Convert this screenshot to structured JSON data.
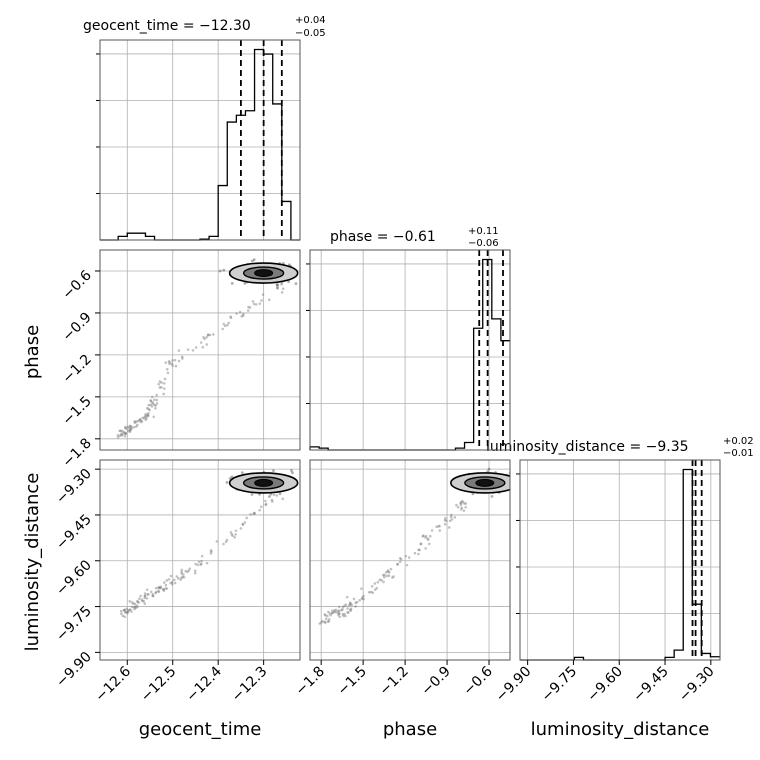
{
  "chart_data": {
    "type": "corner",
    "parameters": [
      "geocent_time",
      "phase",
      "luminosity_distance"
    ],
    "titles": [
      {
        "param": "geocent_time",
        "label": "geocent_time",
        "median": "−12.30",
        "plus": "+0.04",
        "minus": "−0.05"
      },
      {
        "param": "phase",
        "label": "phase",
        "median": "−0.61",
        "plus": "+0.11",
        "minus": "−0.06"
      },
      {
        "param": "luminosity_distance",
        "label": "luminosity_distance",
        "median": "−9.35",
        "plus": "+0.02",
        "minus": "−0.01"
      }
    ],
    "axis_labels": {
      "x": [
        "geocent_time",
        "phase",
        "luminosity_distance"
      ],
      "y": [
        "phase",
        "luminosity_distance"
      ]
    },
    "ranges": {
      "geocent_time": [
        -12.66,
        -12.22
      ],
      "phase": [
        -1.88,
        -0.45
      ],
      "luminosity_distance": [
        -9.925,
        -9.27
      ]
    },
    "ticks": {
      "geocent_time": [
        {
          "v": -12.6,
          "label": "−12.6"
        },
        {
          "v": -12.5,
          "label": "−12.5"
        },
        {
          "v": -12.4,
          "label": "−12.4"
        },
        {
          "v": -12.3,
          "label": "−12.3"
        }
      ],
      "phase": [
        {
          "v": -1.8,
          "label": "−1.8"
        },
        {
          "v": -1.5,
          "label": "−1.5"
        },
        {
          "v": -1.2,
          "label": "−1.2"
        },
        {
          "v": -0.9,
          "label": "−0.9"
        },
        {
          "v": -0.6,
          "label": "−0.6"
        }
      ],
      "luminosity_distance": [
        {
          "v": -9.9,
          "label": "−9.90"
        },
        {
          "v": -9.75,
          "label": "−9.75"
        },
        {
          "v": -9.6,
          "label": "−9.60"
        },
        {
          "v": -9.45,
          "label": "−9.45"
        },
        {
          "v": -9.3,
          "label": "−9.30"
        }
      ]
    },
    "quantiles": {
      "geocent_time": [
        -12.35,
        -12.3,
        -12.26
      ],
      "phase": [
        -0.67,
        -0.61,
        -0.5
      ],
      "luminosity_distance": [
        -9.36,
        -9.35,
        -9.33
      ]
    },
    "histograms": [
      {
        "param": "geocent_time",
        "edges": [
          -12.66,
          -12.64,
          -12.62,
          -12.6,
          -12.58,
          -12.56,
          -12.54,
          -12.52,
          -12.5,
          -12.48,
          -12.46,
          -12.44,
          -12.42,
          -12.4,
          -12.38,
          -12.36,
          -12.34,
          -12.32,
          -12.3,
          -12.28,
          -12.26,
          -12.24,
          -12.22
        ],
        "counts": [
          0,
          0,
          0.8,
          1.5,
          1.5,
          0.8,
          0,
          0,
          0,
          0,
          0,
          0.2,
          0.8,
          12,
          26,
          27.5,
          28.5,
          42,
          41,
          30,
          8.5,
          0
        ]
      },
      {
        "param": "phase",
        "edges": [
          -1.88,
          -1.815,
          -1.75,
          -1.685,
          -1.62,
          -1.555,
          -1.49,
          -1.425,
          -1.36,
          -1.295,
          -1.23,
          -1.165,
          -1.1,
          -1.035,
          -0.97,
          -0.905,
          -0.84,
          -0.775,
          -0.71,
          -0.645,
          -0.58,
          -0.515,
          -0.45
        ],
        "counts": [
          0.5,
          0.3,
          0,
          0,
          0,
          0,
          0,
          0,
          0,
          0,
          0,
          0,
          0,
          0,
          0,
          0,
          0.3,
          1.2,
          19.5,
          30.5,
          21,
          17.5
        ]
      },
      {
        "param": "luminosity_distance",
        "edges": [
          -9.925,
          -9.8953,
          -9.8656,
          -9.8359,
          -9.8062,
          -9.7765,
          -9.7468,
          -9.7171,
          -9.6874,
          -9.6577,
          -9.628,
          -9.5983,
          -9.5686,
          -9.5389,
          -9.5092,
          -9.4795,
          -9.4498,
          -9.4201,
          -9.3904,
          -9.3607,
          -9.331,
          -9.3013,
          -9.27
        ],
        "counts": [
          0,
          0,
          0,
          0,
          0,
          0,
          0.4,
          0,
          0,
          0,
          0,
          0,
          0,
          0,
          0,
          0,
          0.4,
          1.5,
          29,
          8.5,
          1,
          0.5
        ]
      }
    ],
    "pairs": [
      {
        "x": "geocent_time",
        "y": "phase",
        "mode_x": -12.3,
        "mode_y": -0.615,
        "tail_x": [
          -12.26,
          -12.5,
          -12.56,
          -12.62
        ],
        "tail_y": [
          -0.7,
          -1.25,
          -1.65,
          -1.78
        ]
      },
      {
        "x": "geocent_time",
        "y": "luminosity_distance",
        "mode_x": -12.3,
        "mode_y": -9.345,
        "tail_x": [
          -12.24,
          -12.45,
          -12.55,
          -12.62
        ],
        "tail_y": [
          -9.34,
          -9.62,
          -9.71,
          -9.78
        ]
      },
      {
        "x": "phase",
        "y": "luminosity_distance",
        "mode_x": -0.63,
        "mode_y": -9.345,
        "tail_x": [
          -0.75,
          -1.2,
          -1.6,
          -1.8
        ],
        "tail_y": [
          -9.4,
          -9.6,
          -9.75,
          -9.8
        ]
      }
    ],
    "grid": true,
    "legend": "none"
  }
}
